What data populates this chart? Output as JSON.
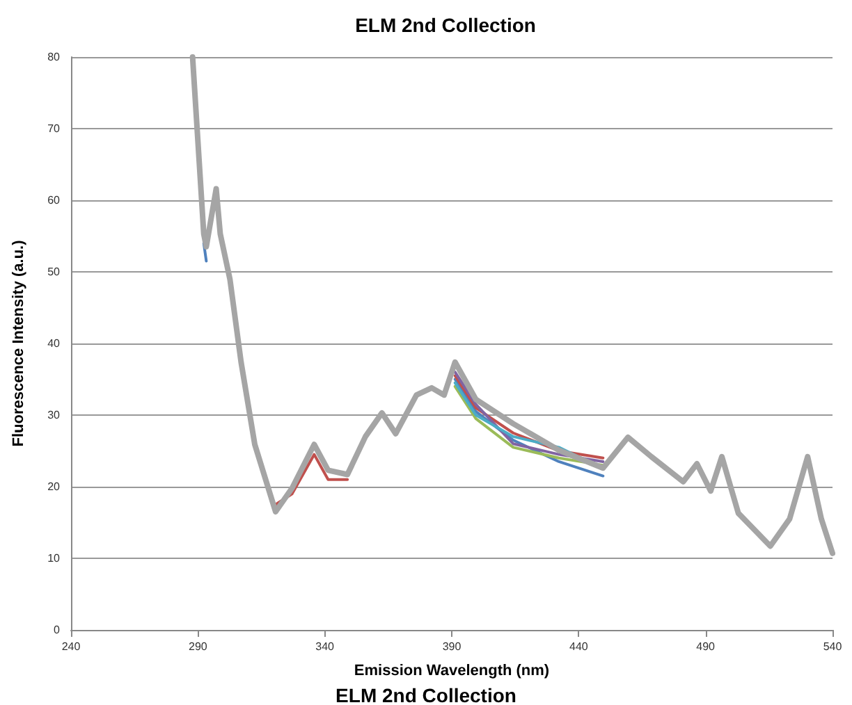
{
  "chart_data": {
    "type": "line",
    "title": "ELM 2nd Collection",
    "xlabel": "Emission Wavelength (nm)",
    "ylabel": "Fluorescence Intensity (a.u.)",
    "annotations": [
      "ELM 2nd Collection"
    ],
    "xlim": [
      240,
      540
    ],
    "xticks": [
      240,
      290,
      340,
      390,
      440,
      490,
      540
    ],
    "ylim": [
      0,
      80
    ],
    "yticks": [
      0,
      10,
      20,
      30,
      40,
      50,
      60,
      70,
      80
    ],
    "grid": "y",
    "marker": "none",
    "line_style": "solid",
    "series": [
      {
        "color": "#4f81bd",
        "x": [
          292.3,
          293.3
        ],
        "values": [
          54,
          51.5
        ]
      },
      {
        "color": "#4f81bd",
        "x": [
          391.3,
          399.5,
          414.2,
          432.2,
          449.6
        ],
        "values": [
          35,
          30.5,
          26.5,
          23.5,
          21.5
        ]
      },
      {
        "color": "#c0504d",
        "x": [
          320.6,
          327.1,
          335.8,
          341.3,
          348.9
        ],
        "values": [
          17.5,
          19,
          24.5,
          21,
          21
        ]
      },
      {
        "color": "#c0504d",
        "x": [
          391.3,
          399.5,
          414.2,
          432.2,
          449.6
        ],
        "values": [
          35.5,
          31,
          27.5,
          25,
          24
        ]
      },
      {
        "color": "#9bbb59",
        "x": [
          391.3,
          399.5,
          414.2,
          432.2,
          449.6
        ],
        "values": [
          34,
          29.5,
          25.5,
          24,
          23
        ]
      },
      {
        "color": "#8064a2",
        "x": [
          391.3,
          399.5,
          414.2,
          432.2,
          449.6
        ],
        "values": [
          36,
          31.5,
          26,
          24.5,
          23.5
        ]
      },
      {
        "color": "#4bacc6",
        "x": [
          391.3,
          399.5,
          414.2,
          432.2,
          449.6
        ],
        "values": [
          34.5,
          30,
          27,
          25.5,
          22.5
        ]
      },
      {
        "color": "#a5a5a5",
        "x": [
          287.9,
          292.3,
          293.3,
          297.2,
          298.8,
          302.6,
          307,
          312.4,
          320.6,
          327.1,
          335.8,
          341.3,
          348.9,
          356,
          362.5,
          367.9,
          376.1,
          382.1,
          387,
          391.3,
          399.5,
          414.2,
          432.2,
          449.6,
          459.4,
          468.6,
          481.2,
          486.6,
          492,
          496.4,
          502.9,
          515.5,
          523.1,
          530.2,
          535.6,
          540
        ],
        "values": [
          80,
          55.3,
          53.5,
          61.6,
          55.3,
          49,
          37.4,
          25.9,
          16.5,
          19.8,
          25.9,
          22.3,
          21.7,
          27,
          30.3,
          27.4,
          32.8,
          33.8,
          32.8,
          37.4,
          32.2,
          28.8,
          25.1,
          22.6,
          26.9,
          24.2,
          20.7,
          23.2,
          19.4,
          24.2,
          16.3,
          11.7,
          15.5,
          24.2,
          15.5,
          10.7
        ]
      }
    ]
  }
}
